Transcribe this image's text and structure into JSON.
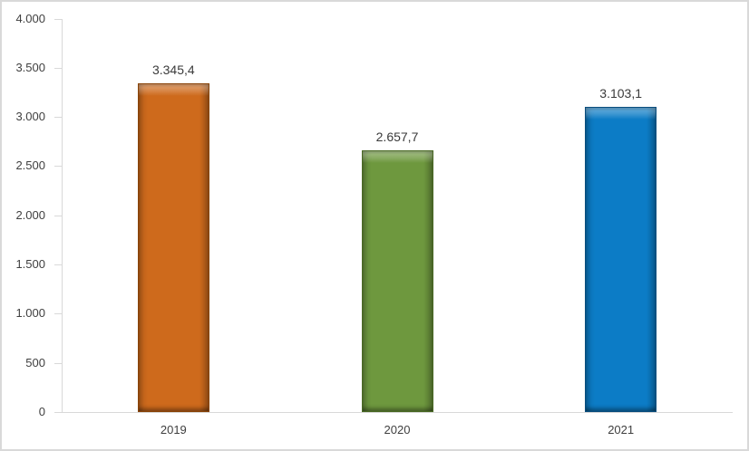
{
  "chart_data": {
    "type": "bar",
    "title": "",
    "categories": [
      "2019",
      "2020",
      "2021"
    ],
    "values": [
      3345.4,
      2657.7,
      3103.1
    ],
    "value_labels": [
      "3.345,4",
      "2.657,7",
      "3.103,1"
    ],
    "series_colors": [
      {
        "fill": "#ce6a1c",
        "border": "#8a4408"
      },
      {
        "fill": "#6e983e",
        "border": "#4a6a24"
      },
      {
        "fill": "#0c7cc6",
        "border": "#0a4e7e"
      }
    ],
    "y_axis": {
      "min": 0,
      "max": 4000,
      "step": 500,
      "tick_labels": [
        "0",
        "500",
        "1.000",
        "1.500",
        "2.000",
        "2.500",
        "3.000",
        "3.500",
        "4.000"
      ]
    },
    "x_axis": {
      "tick_labels": [
        "2019",
        "2020",
        "2021"
      ]
    },
    "grid": false,
    "legend": null,
    "colors": {
      "axis": "#d9d9d9",
      "frame_border": "#d9d9d9",
      "text": "#3f3f3f",
      "background": "#ffffff"
    }
  }
}
